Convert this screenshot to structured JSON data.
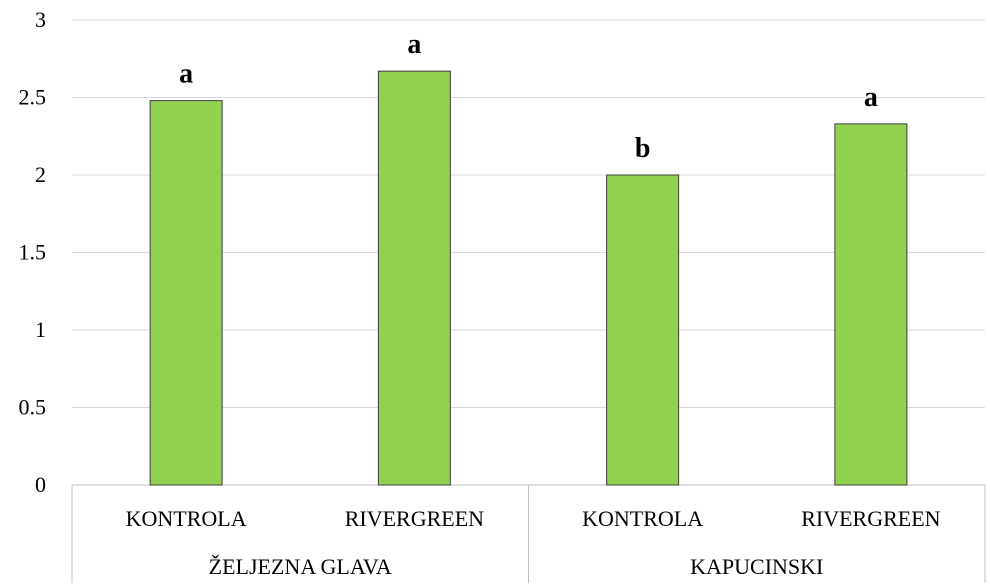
{
  "chart_data": {
    "type": "bar",
    "title": "",
    "xlabel": "",
    "ylabel": "",
    "ylim": [
      0,
      3
    ],
    "yticks": [
      "0",
      "0.5",
      "1",
      "1.5",
      "2",
      "2.5",
      "3"
    ],
    "grid": true,
    "legend": "none",
    "categories": [
      "KONTROLA",
      "RIVERGREEN",
      "KONTROLA",
      "RIVERGREEN"
    ],
    "groups": [
      {
        "label": "ŽELJEZNA GLAVA",
        "categories": [
          "KONTROLA",
          "RIVERGREEN"
        ]
      },
      {
        "label": "KAPUCINSKI",
        "categories": [
          "KONTROLA",
          "RIVERGREEN"
        ]
      }
    ],
    "series": [
      {
        "values": [
          2.48,
          2.67,
          2.0,
          2.33
        ]
      }
    ],
    "annotations": [
      "a",
      "a",
      "b",
      "a"
    ],
    "colors": {
      "bar_fill": "#92d050",
      "bar_stroke": "#3f3f3f",
      "grid": "#d9d9d9",
      "axis": "#bfbfbf",
      "text": "#000000"
    }
  }
}
